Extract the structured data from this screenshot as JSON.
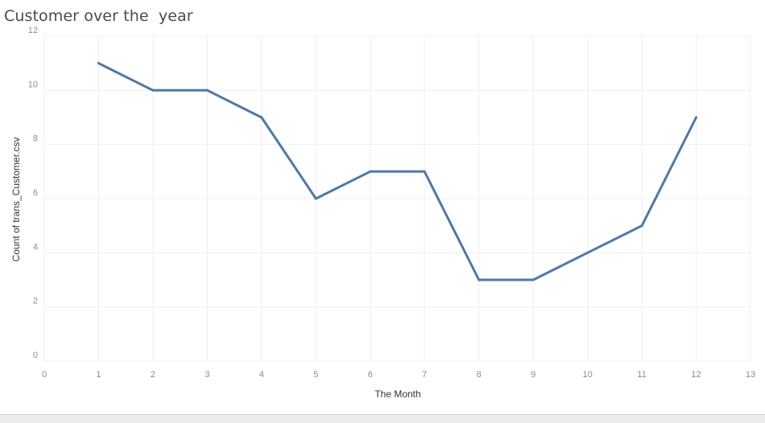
{
  "chart_data": {
    "type": "line",
    "title": "Customer over the  year",
    "xlabel": "The Month",
    "ylabel": "Count of trans_Customer.csv",
    "xlim": [
      0,
      13
    ],
    "ylim": [
      0,
      12
    ],
    "x_ticks": [
      0,
      1,
      2,
      3,
      4,
      5,
      6,
      7,
      8,
      9,
      10,
      11,
      12,
      13
    ],
    "y_ticks": [
      0,
      2,
      4,
      6,
      8,
      10,
      12
    ],
    "grid": true,
    "series": [
      {
        "x": [
          1,
          2,
          3,
          4,
          5,
          6,
          7,
          8,
          9,
          10,
          11,
          12
        ],
        "y": [
          11,
          10,
          10,
          9,
          6,
          7,
          7,
          3,
          3,
          4,
          5,
          9
        ],
        "color": "#4e79a7"
      }
    ]
  }
}
